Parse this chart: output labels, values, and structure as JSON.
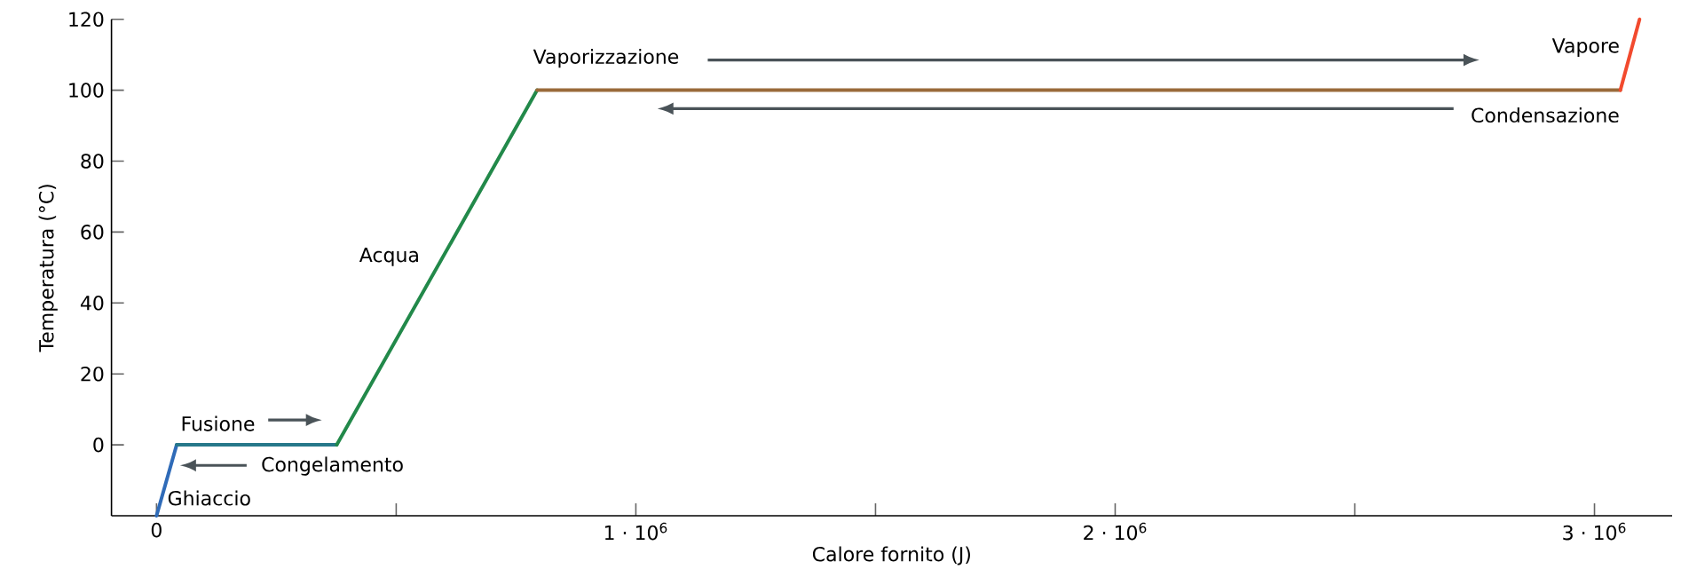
{
  "chart_data": {
    "type": "line",
    "xlabel": "Calore fornito (J)",
    "ylabel": "Temperatura (°C)",
    "xlim": [
      -94000,
      3162000
    ],
    "ylim": [
      -20,
      120
    ],
    "xticks": [
      0,
      {
        "value": 500000,
        "label": null
      },
      {
        "value": 1000000,
        "label": "1 · 10$^{6}$"
      },
      {
        "value": 1500000,
        "label": null
      },
      {
        "value": 2000000,
        "label": "2 · 10$^{6}$"
      },
      {
        "value": 2500000,
        "label": null
      },
      {
        "value": 3000000,
        "label": "3 · 10$^{6}$"
      }
    ],
    "yticks": [
      0,
      20,
      40,
      60,
      80,
      100,
      120
    ],
    "series": [
      {
        "color": "#2f6bb8",
        "x": [
          0,
          42000
        ],
        "values": [
          -20,
          0
        ]
      },
      {
        "color": "#27788a",
        "x": [
          42000,
          376000
        ],
        "values": [
          0,
          0
        ]
      },
      {
        "color": "#22894a",
        "x": [
          376000,
          794000
        ],
        "values": [
          0,
          100
        ]
      },
      {
        "color": "#9a6a3a",
        "x": [
          794000,
          3054000
        ],
        "values": [
          100,
          100
        ]
      },
      {
        "color": "#f24a2e",
        "x": [
          3054000,
          3094000
        ],
        "values": [
          100,
          120
        ]
      }
    ],
    "annotations": [
      "Ghiaccio",
      "Fusione",
      "Congelamento",
      "Acqua",
      "Vaporizzazione",
      "Condensazione",
      "Vapore"
    ]
  }
}
